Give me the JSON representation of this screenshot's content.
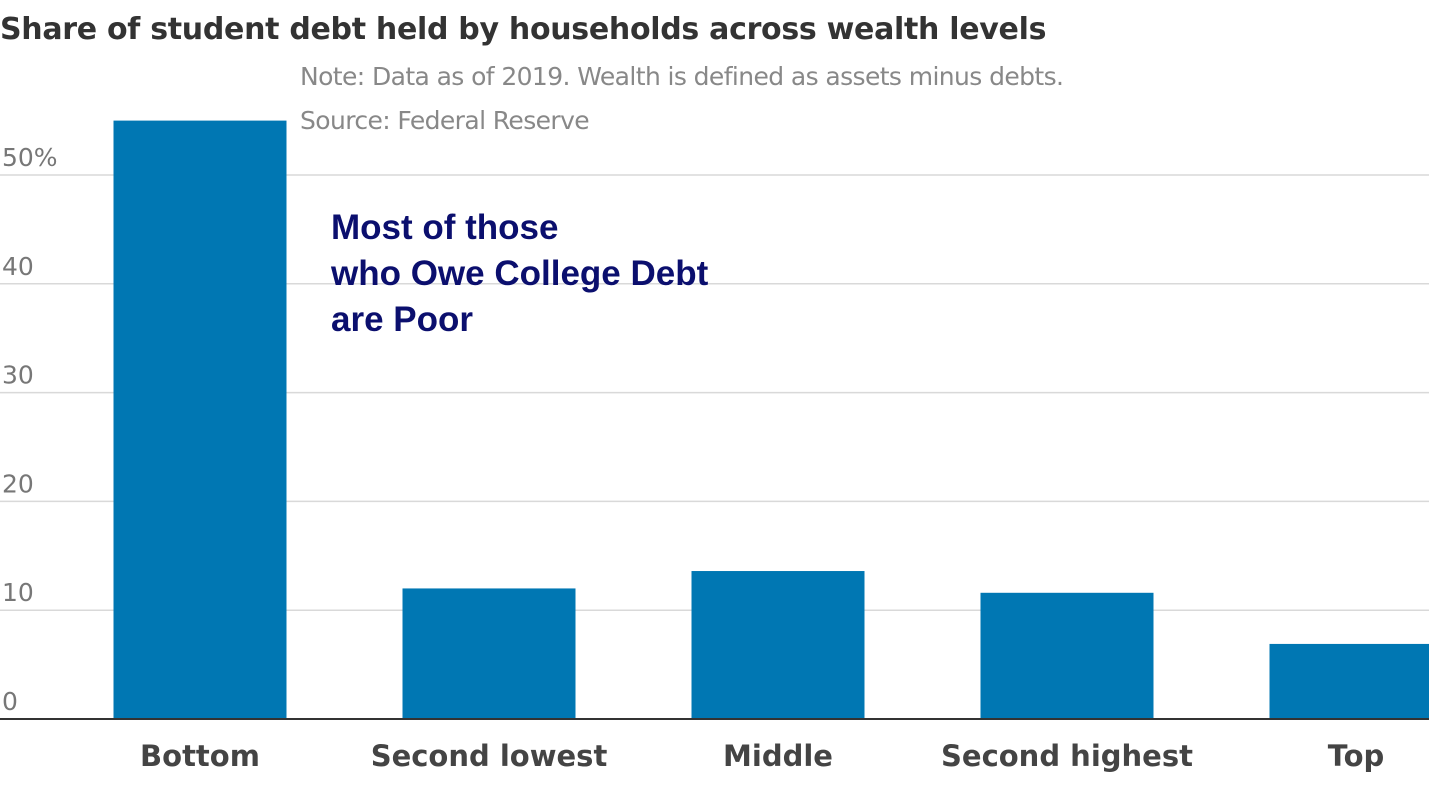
{
  "chart_data": {
    "type": "bar",
    "title": "Share of student debt held by households across wealth levels",
    "notes": [
      "Note: Data as of 2019. Wealth is defined as assets minus debts.",
      "Source: Federal Reserve"
    ],
    "annotation": [
      "Most of those",
      "who Owe College Debt",
      "are Poor"
    ],
    "categories": [
      "Bottom",
      "Second lowest",
      "Middle",
      "Second highest",
      "Top"
    ],
    "values": [
      55,
      12,
      13.6,
      11.6,
      6.9
    ],
    "yticks": [
      0,
      10,
      20,
      30,
      40,
      50
    ],
    "ytick_labels": [
      "0",
      "10",
      "20",
      "30",
      "40",
      "50%"
    ],
    "ylim": [
      0,
      55
    ],
    "grid": true,
    "colors": {
      "bar": "#0077b3",
      "grid": "#d9d9d9",
      "axis": "#333333",
      "annotation": "#0b0f6e"
    }
  }
}
